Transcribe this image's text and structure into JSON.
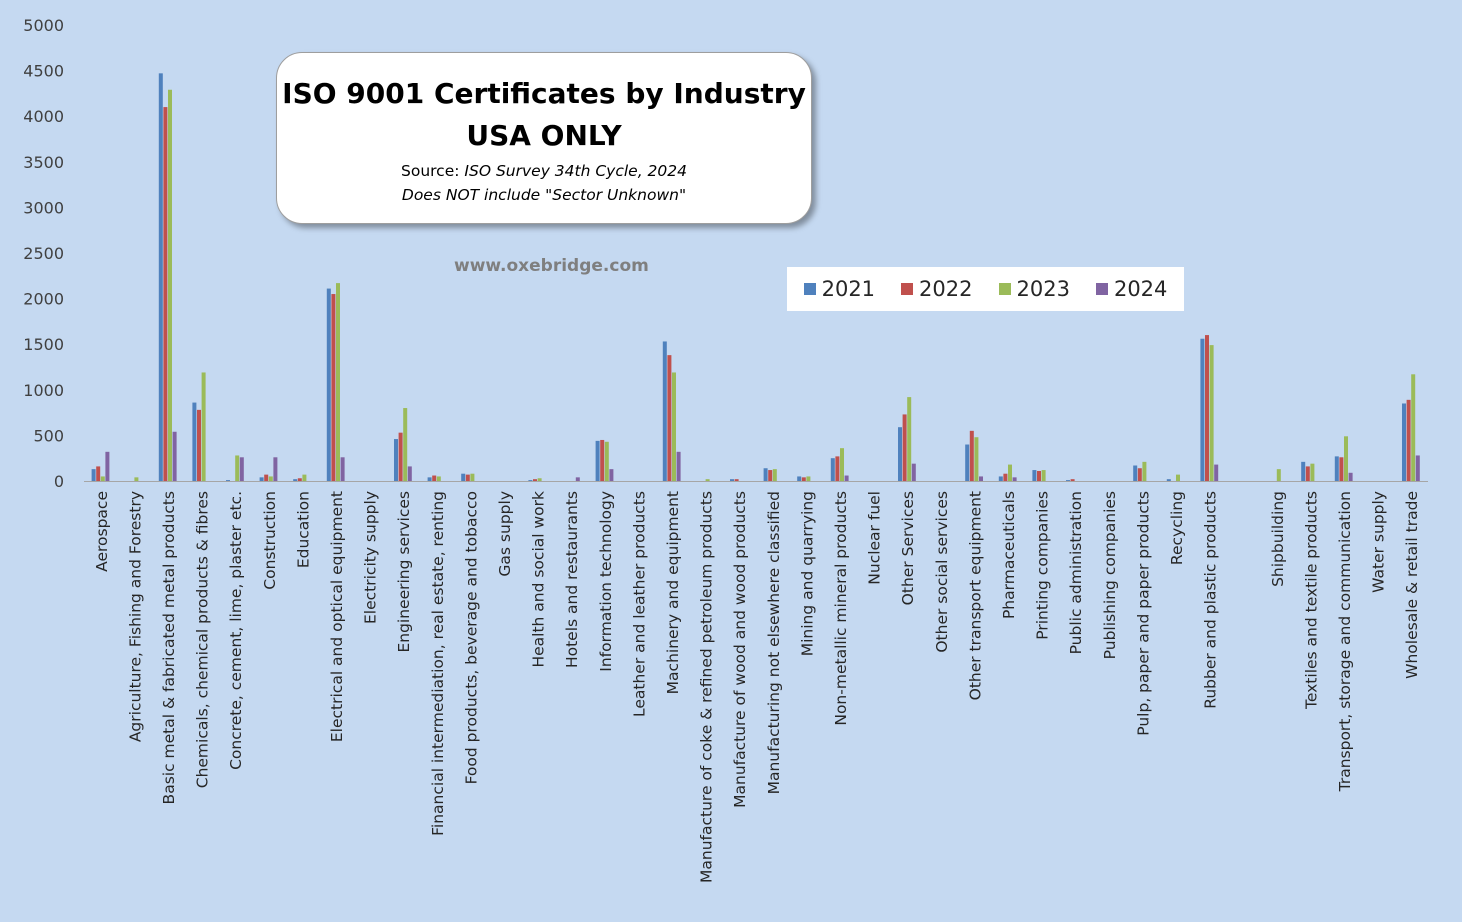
{
  "chart_data": {
    "type": "bar",
    "title": "ISO 9001 Certificates by Industry",
    "subtitle": "USA ONLY",
    "source_prefix": "Source:",
    "source_text": "ISO Survey 34th Cycle, 2024",
    "note": "Does NOT include \"Sector Unknown\"",
    "website": "www.oxebridge.com",
    "ylim": [
      0,
      5000
    ],
    "yticks": [
      0,
      500,
      1000,
      1500,
      2000,
      2500,
      3000,
      3500,
      4000,
      4500,
      5000
    ],
    "grid": false,
    "legend_position": "top-right",
    "colors": {
      "2021": "#4f81bd",
      "2022": "#c0504d",
      "2023": "#9bbb59",
      "2024": "#8064a2",
      "background": "#c5d9f1",
      "axis": "#a6a6a6"
    },
    "categories": [
      "Aerospace",
      "Agriculture, Fishing and Forestry",
      "Basic metal & fabricated metal products",
      "Chemicals, chemical products & fibres",
      "Concrete, cement, lime, plaster etc.",
      "Construction",
      "Education",
      "Electrical and optical equipment",
      "Electricity supply",
      "Engineering services",
      "Financial intermediation, real estate, renting",
      "Food products, beverage and tobacco",
      "Gas supply",
      "Health and social work",
      "Hotels and restaurants",
      "Information technology",
      "Leather and leather products",
      "Machinery and equipment",
      "Manufacture of coke & refined petroleum products",
      "Manufacture of wood and wood products",
      "Manufacturing not elsewhere classified",
      "Mining and quarrying",
      "Non-metallic mineral products",
      "Nuclear fuel",
      "Other Services",
      "Other social services",
      "Other transport equipment",
      "Pharmaceuticals",
      "Printing companies",
      "Public administration",
      "Publishing companies",
      "Pulp, paper and paper products",
      "Recycling",
      "Rubber and plastic products",
      "",
      "Shipbuilding",
      "Textiles and textile products",
      "Transport, storage and communication",
      "Water supply",
      "Wholesale & retail trade"
    ],
    "series": [
      {
        "name": "2021",
        "values": [
          130,
          0,
          4470,
          860,
          10,
          40,
          20,
          2110,
          0,
          460,
          40,
          80,
          0,
          10,
          0,
          440,
          0,
          1530,
          0,
          20,
          140,
          50,
          250,
          0,
          590,
          0,
          400,
          50,
          120,
          10,
          0,
          170,
          20,
          1560,
          0,
          0,
          210,
          270,
          0,
          850
        ]
      },
      {
        "name": "2022",
        "values": [
          160,
          0,
          4100,
          780,
          0,
          70,
          30,
          2050,
          0,
          530,
          60,
          70,
          0,
          20,
          0,
          450,
          0,
          1380,
          0,
          20,
          120,
          40,
          270,
          0,
          730,
          0,
          550,
          80,
          110,
          20,
          0,
          140,
          0,
          1600,
          0,
          0,
          160,
          260,
          0,
          890
        ]
      },
      {
        "name": "2023",
        "values": [
          50,
          40,
          4290,
          1190,
          280,
          50,
          70,
          2170,
          0,
          800,
          50,
          80,
          0,
          30,
          0,
          430,
          0,
          1190,
          20,
          0,
          130,
          50,
          360,
          0,
          920,
          0,
          480,
          180,
          120,
          0,
          0,
          210,
          70,
          1490,
          0,
          130,
          190,
          490,
          0,
          1170
        ]
      },
      {
        "name": "2024",
        "values": [
          320,
          0,
          540,
          0,
          260,
          260,
          0,
          260,
          0,
          160,
          0,
          0,
          0,
          0,
          40,
          130,
          0,
          320,
          0,
          0,
          0,
          0,
          60,
          0,
          190,
          0,
          50,
          40,
          0,
          0,
          0,
          0,
          0,
          180,
          0,
          0,
          0,
          90,
          0,
          280
        ]
      }
    ]
  }
}
